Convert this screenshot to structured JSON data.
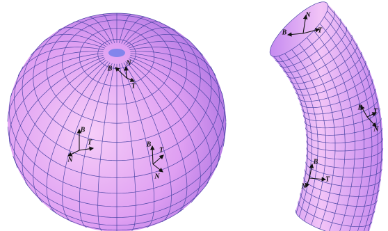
{
  "sphere": {
    "frames": [
      {
        "B": "B",
        "N": "N",
        "T": "T"
      },
      {
        "B": "B",
        "N": "N",
        "T": "T"
      },
      {
        "B": "B",
        "N": "N",
        "T": "T"
      }
    ]
  },
  "tube": {
    "frames": [
      {
        "B": "B",
        "N": "N",
        "T": "T"
      },
      {
        "B": "B",
        "N": "N",
        "T": "T"
      },
      {
        "B": "B",
        "N": "N",
        "T": "T"
      }
    ]
  }
}
